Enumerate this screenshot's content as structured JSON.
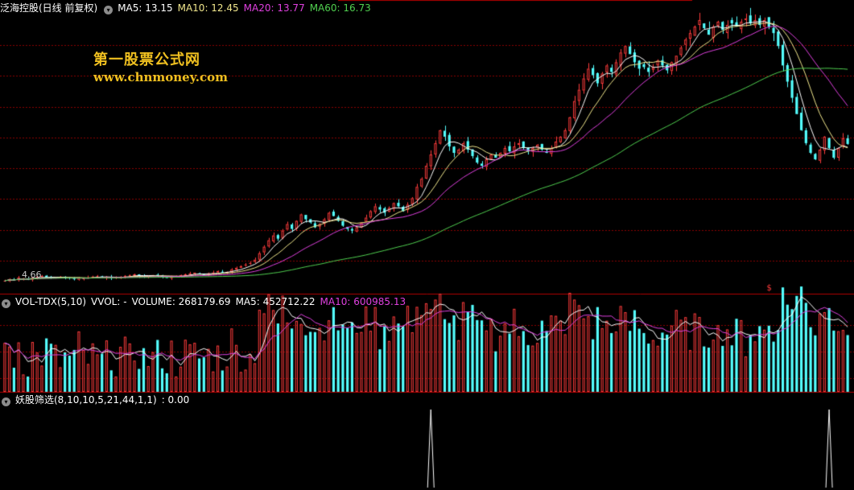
{
  "main_header": {
    "stock": "泛海控股(日线 前复权)",
    "ma5": "MA5: 13.15",
    "ma10": "MA10: 12.45",
    "ma20": "MA20: 13.77",
    "ma60": "MA60: 16.73"
  },
  "volume_header": {
    "name": "VOL-TDX(5,10)",
    "vvol": "VVOL: -",
    "volume": "VOLUME: 268179.69",
    "ma5": "MA5: 452712.22",
    "ma10": "MA10: 600985.13"
  },
  "indicator_header": {
    "name": "妖股筛选(8,10,10,5,21,44,1,1)",
    "value": ": 0.00"
  },
  "watermark": {
    "name": "第一股票公式网",
    "url": "www.chnmoney.com"
  },
  "low_label": "4.66",
  "colors": {
    "up": "#ff3c3c",
    "down": "#54ffff",
    "ma5": "#ffffff",
    "ma10": "#f0e68c",
    "ma20": "#e040e0",
    "ma60": "#50d050",
    "grid": "#8b0000",
    "header_text": "#ffffff",
    "watermark": "#f0c020"
  },
  "chart_data": [
    {
      "type": "candlestick",
      "title": "泛海控股(日线 前复权)",
      "y_range_approx": [
        4.2,
        21.0
      ],
      "min_price_label": 4.66,
      "series": [
        {
          "name": "MA5",
          "last": 13.15
        },
        {
          "name": "MA10",
          "last": 12.45
        },
        {
          "name": "MA20",
          "last": 13.77
        },
        {
          "name": "MA60",
          "last": 16.73
        }
      ],
      "closes_approx": [
        4.7,
        4.8,
        4.75,
        4.9,
        4.85,
        4.8,
        4.9,
        4.95,
        5.0,
        4.9,
        4.85,
        4.9,
        4.95,
        4.9,
        4.85,
        4.8,
        4.9,
        4.85,
        4.9,
        4.95,
        5.0,
        4.95,
        4.9,
        4.85,
        4.9,
        4.95,
        5.0,
        5.05,
        5.1,
        5.0,
        4.95,
        5.0,
        5.05,
        5.0,
        4.95,
        4.9,
        4.95,
        5.0,
        5.05,
        5.1,
        5.15,
        5.2,
        5.1,
        5.05,
        5.15,
        5.2,
        5.3,
        5.2,
        5.25,
        5.4,
        5.5,
        5.6,
        5.7,
        5.8,
        6.0,
        6.4,
        6.8,
        7.2,
        7.5,
        7.3,
        7.8,
        8.2,
        7.9,
        8.4,
        8.8,
        8.5,
        8.3,
        8.0,
        8.2,
        8.5,
        8.9,
        8.7,
        8.4,
        8.1,
        7.9,
        7.8,
        8.0,
        8.3,
        8.6,
        9.0,
        9.3,
        9.1,
        8.9,
        9.2,
        9.5,
        9.3,
        9.0,
        9.4,
        9.8,
        10.5,
        11.0,
        11.8,
        12.5,
        13.2,
        14.0,
        13.6,
        13.0,
        12.6,
        12.8,
        13.2,
        12.8,
        12.4,
        12.0,
        11.8,
        12.2,
        12.5,
        12.3,
        12.6,
        12.9,
        12.7,
        13.0,
        13.2,
        12.9,
        12.7,
        12.9,
        13.1,
        12.8,
        12.6,
        12.9,
        13.3,
        13.6,
        14.0,
        14.8,
        15.8,
        16.5,
        17.2,
        17.8,
        17.4,
        16.9,
        17.5,
        18.0,
        17.6,
        18.2,
        18.8,
        19.2,
        18.7,
        18.2,
        17.8,
        17.9,
        17.6,
        17.9,
        18.3,
        18.0,
        17.7,
        18.2,
        18.6,
        19.1,
        19.6,
        20.0,
        20.4,
        20.8,
        20.3,
        19.9,
        20.4,
        20.7,
        20.2,
        20.5,
        20.6,
        20.4,
        20.7,
        20.9,
        20.6,
        20.8,
        20.5,
        20.8,
        20.4,
        20.0,
        19.2,
        18.0,
        17.0,
        16.0,
        15.0,
        14.0,
        13.2,
        12.6,
        12.2,
        12.8,
        13.6,
        12.9,
        12.3,
        12.9,
        13.5,
        13.15
      ]
    },
    {
      "type": "bar",
      "title": "VOL-TDX(5,10)",
      "series": [
        {
          "name": "VOLUME",
          "last": 268179.69
        },
        {
          "name": "MA5",
          "last": 452712.22
        },
        {
          "name": "MA10",
          "last": 600985.13
        }
      ]
    },
    {
      "type": "line",
      "title": "妖股筛选(8,10,10,5,21,44,1,1)",
      "last": 0.0,
      "spike_positions": [
        "around the highest-volume day (mid rally)",
        "last bar"
      ]
    }
  ]
}
